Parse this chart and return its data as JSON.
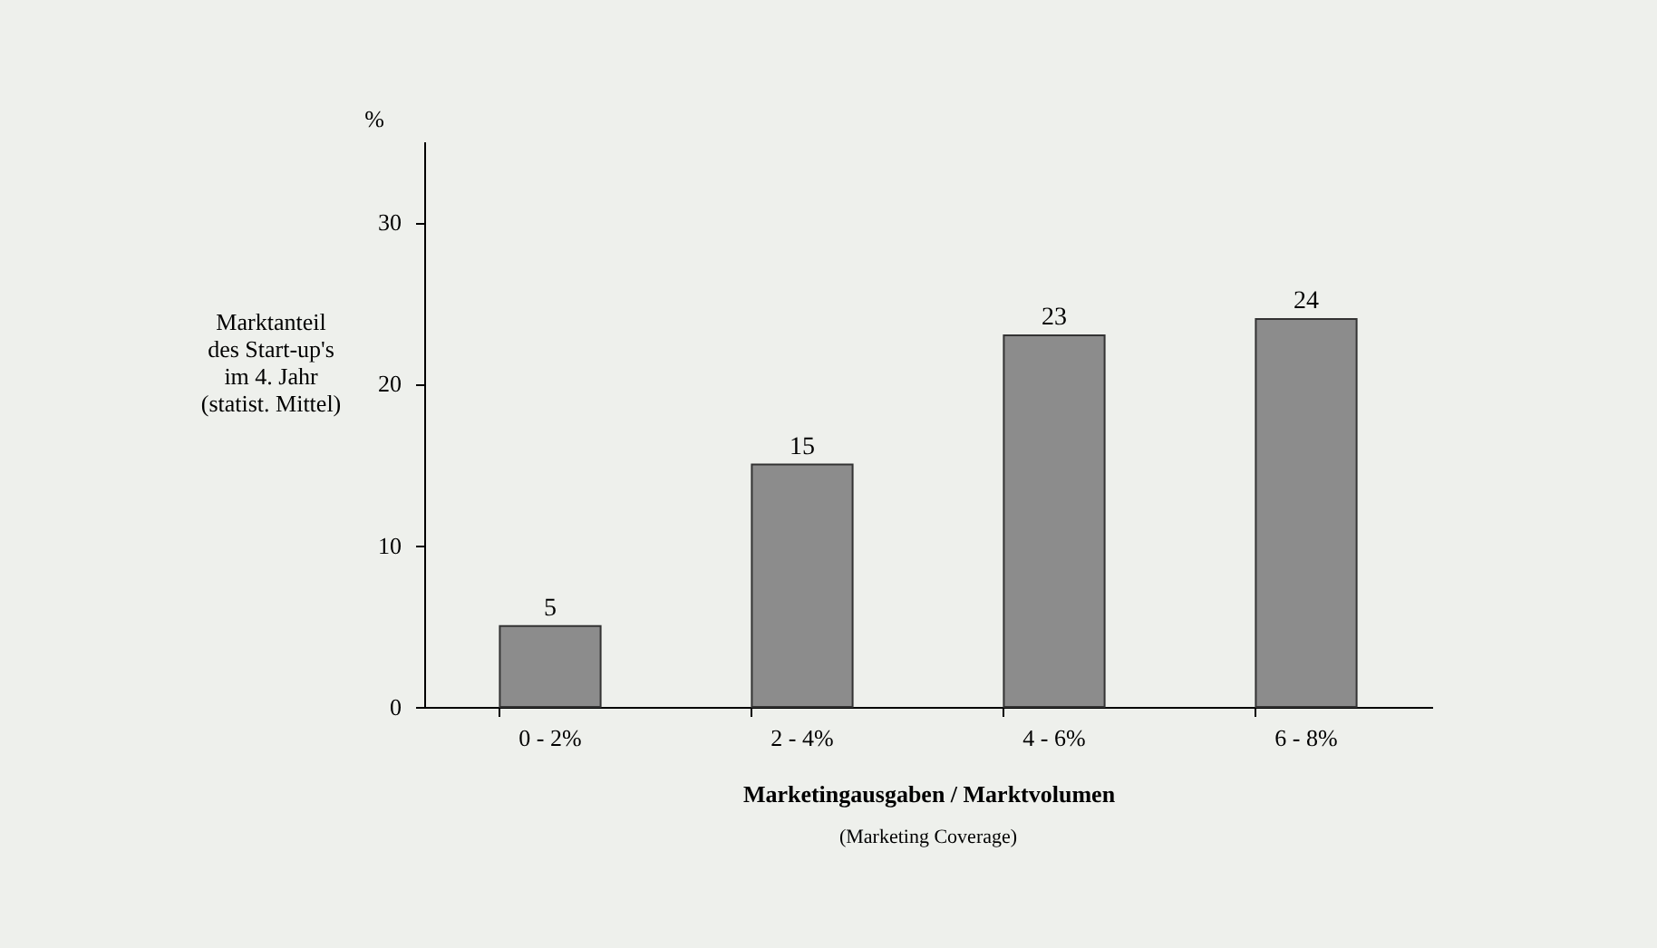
{
  "chart_data": {
    "type": "bar",
    "xlabel": "Marketingausgaben / Marktvolumen",
    "ylabel": "Marktanteil\ndes Start-up's\nim 4. Jahr\n(statist. Mittel)",
    "annotations": [
      "%",
      "(Marketing Coverage)"
    ],
    "categories": [
      "0 - 2%",
      "2 - 4%",
      "4 - 6%",
      "6 - 8%"
    ],
    "values": [
      5,
      15,
      23,
      24
    ],
    "color": "#8c8c8c",
    "ylim": [
      0,
      35
    ],
    "yticks": [
      0,
      10,
      20,
      30
    ],
    "data_labels": true,
    "grid": false
  }
}
